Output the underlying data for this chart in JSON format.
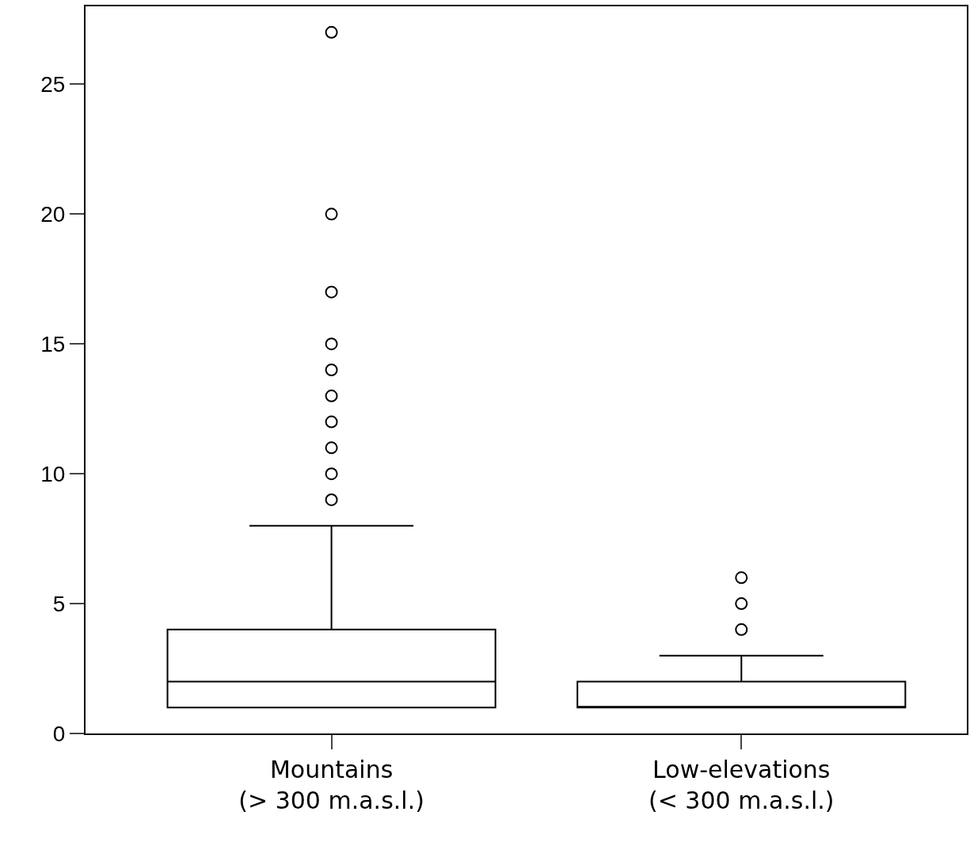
{
  "chart_data": {
    "type": "box",
    "categories": [
      "Mountains\n(> 300 m.a.s.l.)",
      "Low-elevations\n(< 300 m.a.s.l.)"
    ],
    "boxes": [
      {
        "low": 1,
        "q1": 1,
        "median": 2,
        "q3": 4,
        "high": 8,
        "outliers": [
          9,
          10,
          11,
          12,
          13,
          14,
          15,
          17,
          20,
          27
        ]
      },
      {
        "low": 1,
        "q1": 1,
        "median": 1,
        "q3": 2,
        "high": 3,
        "outliers": [
          4,
          5,
          6
        ]
      }
    ],
    "color": "#000000",
    "ylim": [
      0,
      28
    ],
    "yticks": [
      0,
      5,
      10,
      15,
      20,
      25
    ],
    "grid": false,
    "marker": "circle"
  }
}
